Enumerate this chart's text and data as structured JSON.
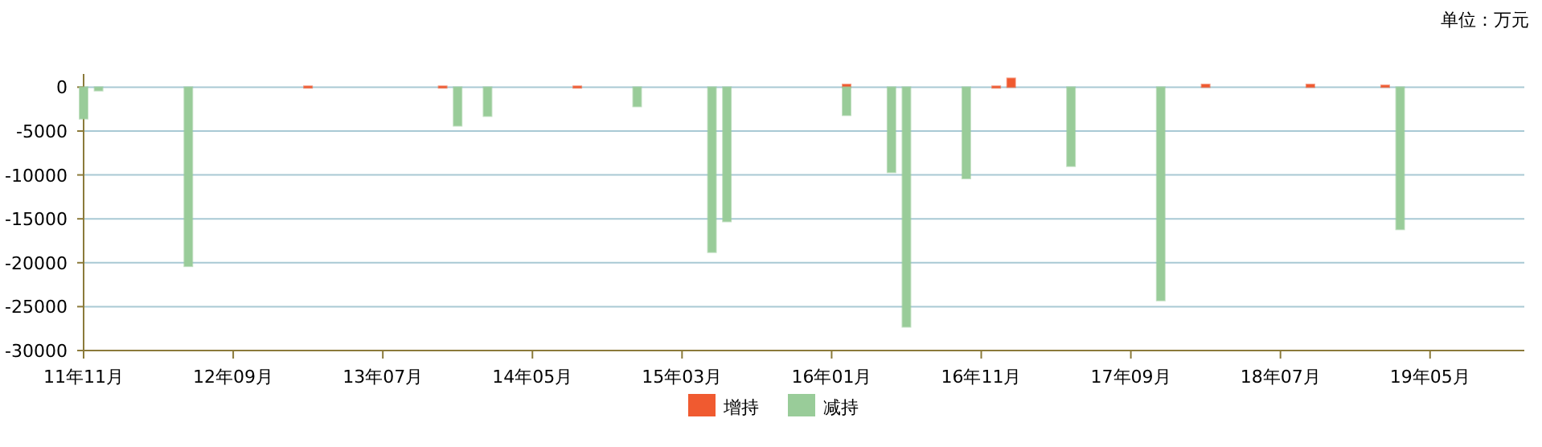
{
  "chart_data": {
    "type": "bar",
    "annotations": [
      "单位：万元"
    ],
    "categories": [
      "11年11月",
      null,
      null,
      null,
      null,
      null,
      null,
      null,
      null,
      null,
      "12年09月",
      null,
      null,
      null,
      null,
      null,
      null,
      null,
      null,
      null,
      "13年07月",
      null,
      null,
      null,
      null,
      null,
      null,
      null,
      null,
      null,
      "14年05月",
      null,
      null,
      null,
      null,
      null,
      null,
      null,
      null,
      null,
      "15年03月",
      null,
      null,
      null,
      null,
      null,
      null,
      null,
      null,
      null,
      "16年01月",
      null,
      null,
      null,
      null,
      null,
      null,
      null,
      null,
      null,
      "16年11月",
      null,
      null,
      null,
      null,
      null,
      null,
      null,
      null,
      null,
      "17年09月",
      null,
      null,
      null,
      null,
      null,
      null,
      null,
      null,
      null,
      "18年07月",
      null,
      null,
      null,
      null,
      null,
      null,
      null,
      null,
      null,
      "19年05月",
      null,
      null,
      null,
      null,
      null,
      null
    ],
    "series": [
      {
        "name": "增持",
        "color": "#f05a30",
        "values": [
          null,
          null,
          null,
          null,
          null,
          null,
          null,
          null,
          null,
          null,
          null,
          null,
          null,
          null,
          null,
          100,
          null,
          null,
          null,
          null,
          null,
          null,
          null,
          null,
          100,
          null,
          null,
          null,
          null,
          null,
          null,
          null,
          null,
          100,
          null,
          null,
          null,
          null,
          null,
          null,
          null,
          null,
          null,
          null,
          null,
          null,
          null,
          null,
          null,
          null,
          null,
          300,
          null,
          null,
          null,
          null,
          null,
          null,
          null,
          null,
          null,
          100,
          1000,
          null,
          null,
          null,
          null,
          null,
          null,
          null,
          null,
          null,
          null,
          null,
          null,
          300,
          null,
          null,
          null,
          null,
          null,
          null,
          300,
          null,
          null,
          null,
          null,
          200,
          null,
          null,
          null,
          null,
          null,
          null,
          null,
          null,
          null
        ]
      },
      {
        "name": "减持",
        "color": "#99cc99",
        "values": [
          -3600,
          -400,
          null,
          null,
          null,
          null,
          null,
          -20400,
          null,
          null,
          null,
          null,
          null,
          null,
          null,
          null,
          null,
          null,
          null,
          null,
          null,
          null,
          null,
          null,
          null,
          -4400,
          null,
          -3300,
          null,
          null,
          null,
          null,
          null,
          null,
          null,
          null,
          null,
          -2200,
          null,
          null,
          null,
          null,
          -18800,
          -15300,
          null,
          null,
          null,
          null,
          null,
          null,
          null,
          -3200,
          null,
          null,
          -9700,
          -27300,
          null,
          null,
          null,
          -10400,
          null,
          null,
          null,
          null,
          null,
          null,
          -9000,
          null,
          null,
          null,
          null,
          null,
          -24300,
          null,
          null,
          null,
          null,
          null,
          null,
          null,
          null,
          null,
          null,
          null,
          null,
          null,
          null,
          null,
          -16200,
          null,
          null,
          null,
          null,
          null,
          null,
          null,
          null
        ]
      }
    ],
    "ylim": [
      -30000,
      1500
    ],
    "yticks": [
      0,
      -5000,
      -10000,
      -15000,
      -20000,
      -25000,
      -30000
    ],
    "grid": "y",
    "legend": "bottom"
  }
}
